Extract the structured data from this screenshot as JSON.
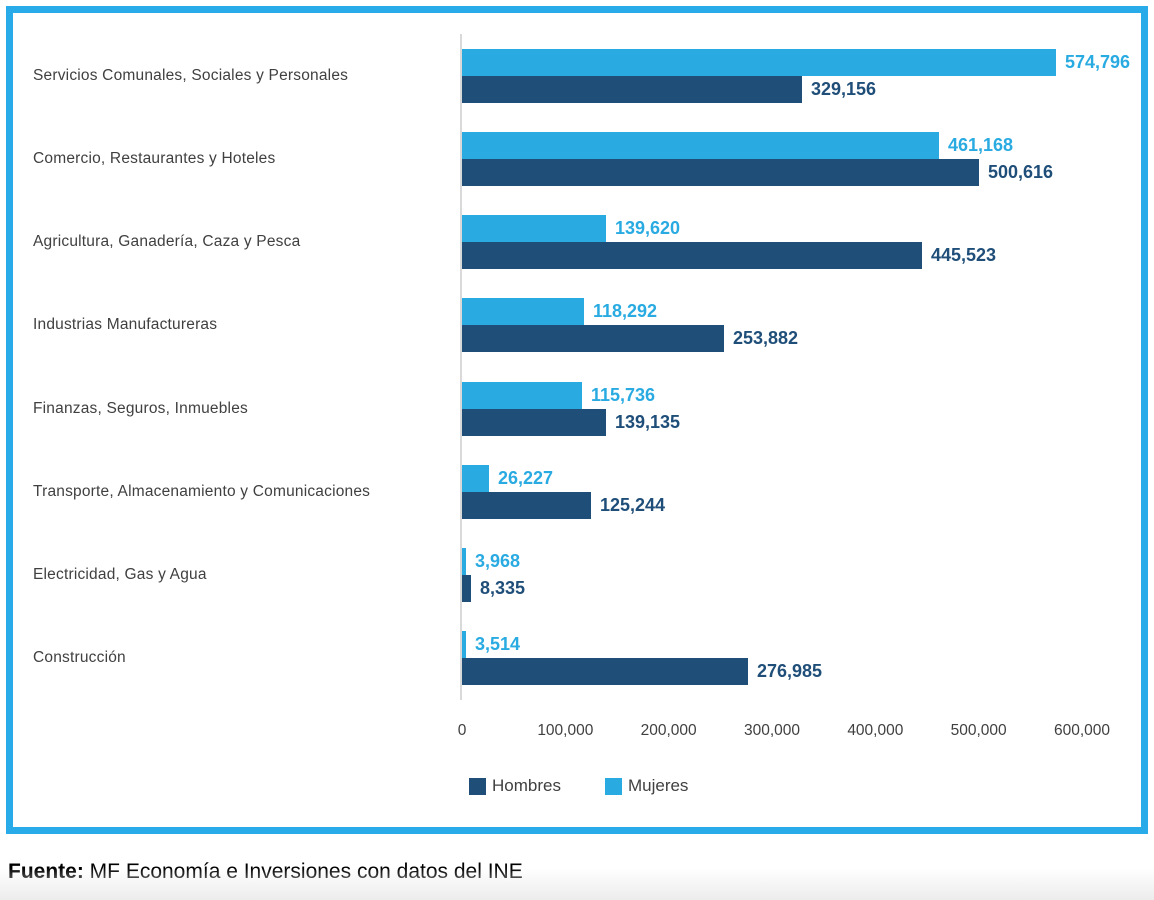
{
  "colors": {
    "frame_border": "#29ABE9",
    "mujeres": "#29ABE2",
    "hombres": "#1F4E79",
    "mujeres_label": "#29ABE2",
    "hombres_label": "#1F4E79",
    "axis_line": "#D9D9D9",
    "text": "#404040"
  },
  "chart_data": {
    "type": "bar",
    "orientation": "horizontal",
    "title": "",
    "categories": [
      "Servicios Comunales, Sociales y Personales",
      "Comercio, Restaurantes y Hoteles",
      "Agricultura, Ganadería, Caza y Pesca",
      "Industrias Manufactureras",
      "Finanzas, Seguros, Inmuebles",
      "Transporte, Almacenamiento y Comunicaciones",
      "Electricidad, Gas y Agua",
      "Construcción"
    ],
    "series": [
      {
        "name": "Mujeres",
        "color": "#29ABE2",
        "values": [
          574796,
          461168,
          139620,
          118292,
          115736,
          26227,
          3968,
          3514
        ],
        "labels": [
          "574,796",
          "461,168",
          "139,620",
          "118,292",
          "115,736",
          "26,227",
          "3,968",
          "3,514"
        ]
      },
      {
        "name": "Hombres",
        "color": "#1F4E79",
        "values": [
          329156,
          500616,
          445523,
          253882,
          139135,
          125244,
          8335,
          276985
        ],
        "labels": [
          "329,156",
          "500,616",
          "445,523",
          "253,882",
          "139,135",
          "125,244",
          "8,335",
          "276,985"
        ]
      }
    ],
    "bar_order_top_to_bottom": [
      "Mujeres",
      "Hombres"
    ],
    "x_axis": {
      "min": 0,
      "max": 600000,
      "tick_interval": 100000,
      "tick_labels": [
        "0",
        "100,000",
        "200,000",
        "300,000",
        "400,000",
        "500,000",
        "600,000"
      ]
    },
    "legend": {
      "position": "bottom",
      "items": [
        {
          "label": "Hombres",
          "color": "#1F4E79"
        },
        {
          "label": "Mujeres",
          "color": "#29ABE2"
        }
      ]
    },
    "grid": false
  },
  "footer": {
    "source_label": "Fuente:",
    "source_text": " MF Economía e Inversiones con datos del INE"
  }
}
